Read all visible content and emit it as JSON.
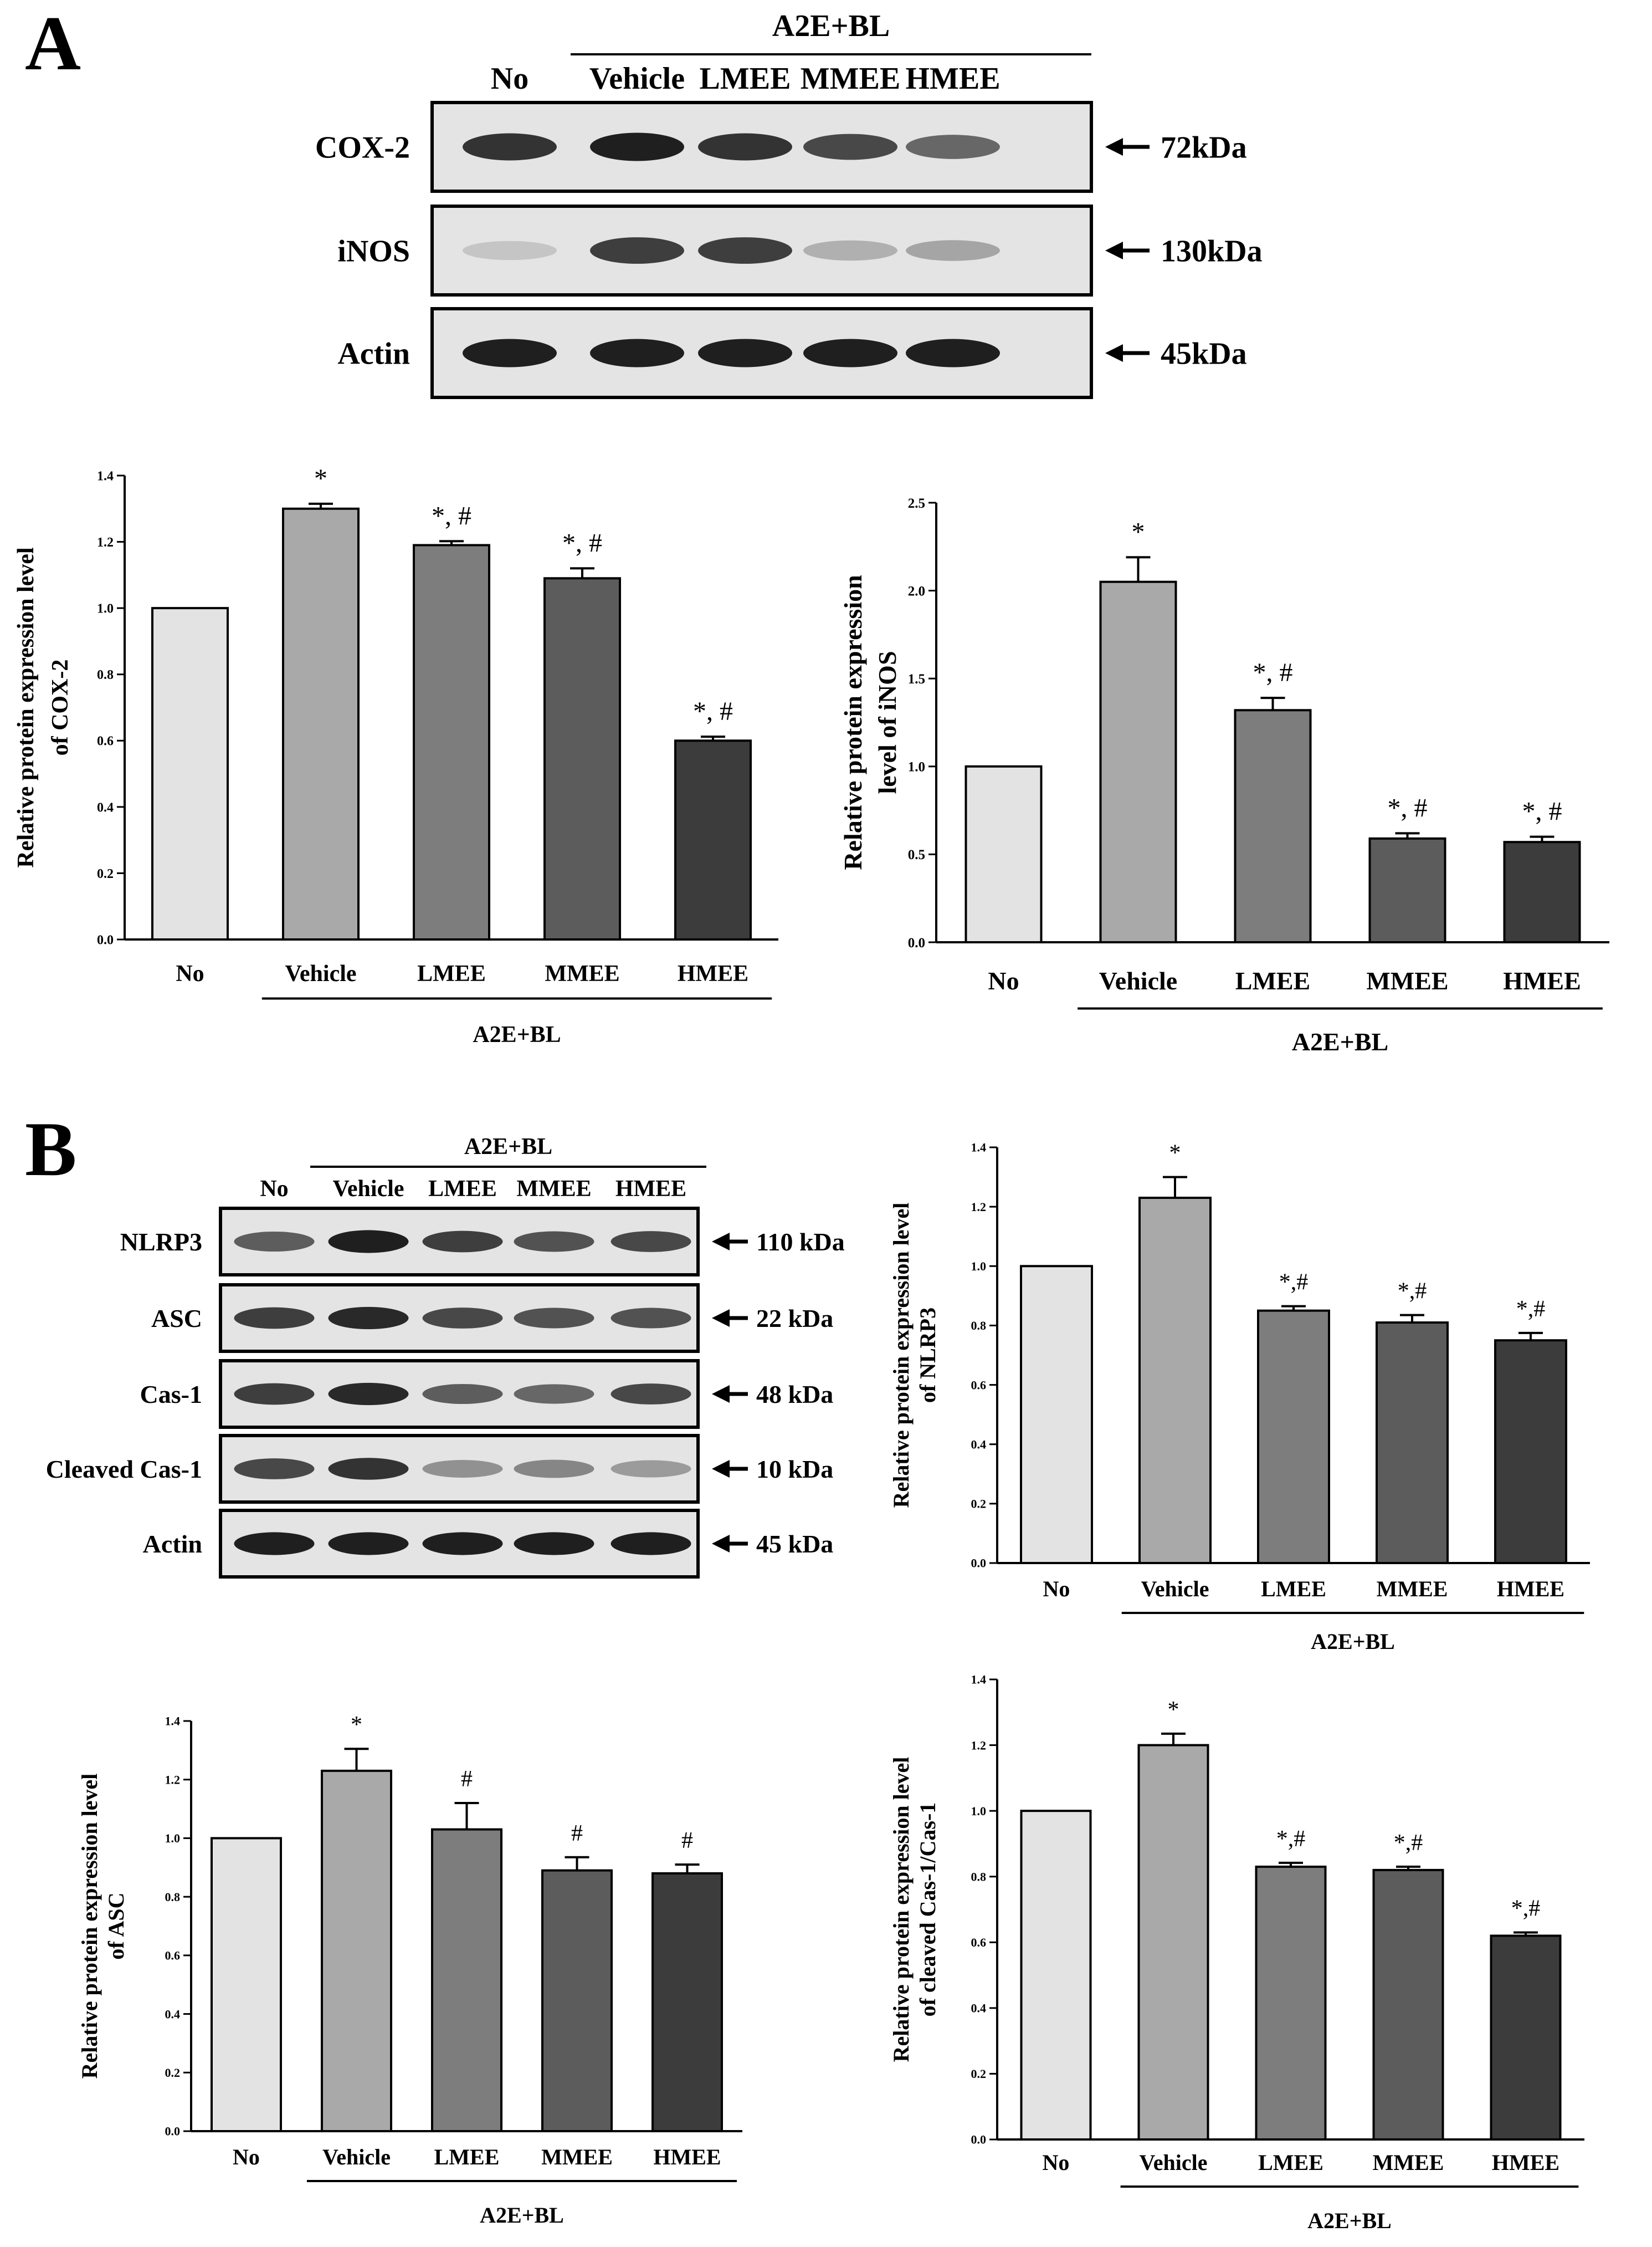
{
  "panels": {
    "a": "A",
    "b": "B"
  },
  "colors": {
    "bars": [
      "#e3e3e3",
      "#a9a9a9",
      "#7d7d7d",
      "#5c5c5c",
      "#3c3c3c"
    ],
    "outline": "#000000",
    "blot_background": "#e4e4e4",
    "blot_band": "#141414"
  },
  "blots": [
    {
      "header": "A2E+BL",
      "lanes": [
        "No",
        "Vehicle",
        "LMEE",
        "MMEE",
        "HMEE"
      ],
      "rows": [
        {
          "label": "COX-2",
          "size": "72kDa",
          "intensity": [
            0.85,
            0.95,
            0.85,
            0.75,
            0.6
          ]
        },
        {
          "label": "iNOS",
          "size": "130kDa",
          "intensity": [
            0.15,
            0.8,
            0.8,
            0.25,
            0.3
          ]
        },
        {
          "label": "Actin",
          "size": "45kDa",
          "intensity": [
            0.95,
            0.95,
            0.95,
            0.95,
            0.95
          ]
        }
      ]
    },
    {
      "header": "A2E+BL",
      "lanes": [
        "No",
        "Vehicle",
        "LMEE",
        "MMEE",
        "HMEE"
      ],
      "rows": [
        {
          "label": "NLRP3",
          "size": "110 kDa",
          "intensity": [
            0.65,
            0.95,
            0.8,
            0.7,
            0.75
          ]
        },
        {
          "label": "ASC",
          "size": "22 kDa",
          "intensity": [
            0.8,
            0.9,
            0.75,
            0.7,
            0.7
          ]
        },
        {
          "label": "Cas-1",
          "size": "48 kDa",
          "intensity": [
            0.8,
            0.9,
            0.65,
            0.6,
            0.75
          ]
        },
        {
          "label": "Cleaved Cas-1",
          "size": "10 kDa",
          "intensity": [
            0.75,
            0.85,
            0.4,
            0.45,
            0.35
          ]
        },
        {
          "label": "Actin",
          "size": "45 kDa",
          "intensity": [
            0.95,
            0.95,
            0.95,
            0.95,
            0.95
          ]
        }
      ]
    }
  ],
  "chart_data": [
    {
      "type": "bar",
      "categories": [
        "No",
        "Vehicle",
        "LMEE",
        "MMEE",
        "HMEE"
      ],
      "values": [
        1.0,
        1.3,
        1.19,
        1.09,
        0.6
      ],
      "errors": [
        0.0,
        0.015,
        0.012,
        0.03,
        0.012
      ],
      "annotations": [
        "",
        "*",
        "*, #",
        "*, #",
        "*, #"
      ],
      "ylabel_lines": [
        "Relative protein expression level",
        "of COX-2"
      ],
      "group_label": "A2E+BL",
      "ylim": [
        0,
        1.4
      ],
      "yticks": [
        "0.0",
        "0.2",
        "0.4",
        "0.6",
        "0.8",
        "1.0",
        "1.2",
        "1.4"
      ]
    },
    {
      "type": "bar",
      "categories": [
        "No",
        "Vehicle",
        "LMEE",
        "MMEE",
        "HMEE"
      ],
      "values": [
        1.0,
        2.05,
        1.32,
        0.59,
        0.57
      ],
      "errors": [
        0.0,
        0.14,
        0.07,
        0.03,
        0.03
      ],
      "annotations": [
        "",
        "*",
        "*, #",
        "*, #",
        "*, #"
      ],
      "ylabel_lines": [
        "Relative protein expression",
        "level of iNOS"
      ],
      "group_label": "A2E+BL",
      "ylim": [
        0,
        2.5
      ],
      "yticks": [
        "0.0",
        "0.5",
        "1.0",
        "1.5",
        "2.0",
        "2.5"
      ]
    },
    {
      "type": "bar",
      "categories": [
        "No",
        "Vehicle",
        "LMEE",
        "MMEE",
        "HMEE"
      ],
      "values": [
        1.0,
        1.23,
        0.85,
        0.81,
        0.75
      ],
      "errors": [
        0.0,
        0.07,
        0.015,
        0.025,
        0.025
      ],
      "annotations": [
        "",
        "*",
        "*,#",
        "*,#",
        "*,#"
      ],
      "ylabel_lines": [
        "Relative protein expression level",
        "of NLRP3"
      ],
      "group_label": "A2E+BL",
      "ylim": [
        0,
        1.4
      ],
      "yticks": [
        "0.0",
        "0.2",
        "0.4",
        "0.6",
        "0.8",
        "1.0",
        "1.2",
        "1.4"
      ]
    },
    {
      "type": "bar",
      "categories": [
        "No",
        "Vehicle",
        "LMEE",
        "MMEE",
        "HMEE"
      ],
      "values": [
        1.0,
        1.23,
        1.03,
        0.89,
        0.88
      ],
      "errors": [
        0.0,
        0.075,
        0.09,
        0.045,
        0.03
      ],
      "annotations": [
        "",
        "*",
        "#",
        "#",
        "#"
      ],
      "ylabel_lines": [
        "Relative protein expression level",
        "of ASC"
      ],
      "group_label": "A2E+BL",
      "ylim": [
        0,
        1.4
      ],
      "yticks": [
        "0.0",
        "0.2",
        "0.4",
        "0.6",
        "0.8",
        "1.0",
        "1.2",
        "1.4"
      ]
    },
    {
      "type": "bar",
      "categories": [
        "No",
        "Vehicle",
        "LMEE",
        "MMEE",
        "HMEE"
      ],
      "values": [
        1.0,
        1.2,
        0.83,
        0.82,
        0.62
      ],
      "errors": [
        0.0,
        0.035,
        0.012,
        0.01,
        0.01
      ],
      "annotations": [
        "",
        "*",
        "*,#",
        "*,#",
        "*,#"
      ],
      "ylabel_lines": [
        "Relative protein expression level",
        "of cleaved Cas-1/Cas-1"
      ],
      "group_label": "A2E+BL",
      "ylim": [
        0,
        1.4
      ],
      "yticks": [
        "0.0",
        "0.2",
        "0.4",
        "0.6",
        "0.8",
        "1.0",
        "1.2",
        "1.4"
      ]
    }
  ]
}
